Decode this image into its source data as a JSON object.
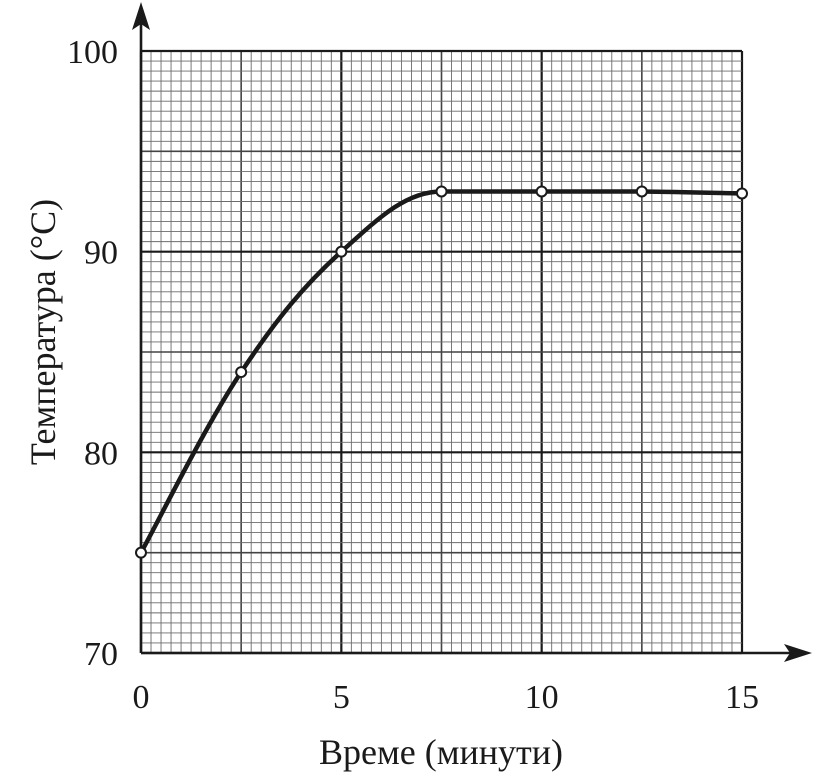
{
  "chart_data": {
    "type": "line",
    "xlabel": "Време (минути)",
    "ylabel": "Температура (°C)",
    "xlim": [
      0,
      15
    ],
    "ylim": [
      70,
      100
    ],
    "x_ticks": [
      "0",
      "5",
      "10",
      "15"
    ],
    "y_ticks": [
      "70",
      "80",
      "90",
      "100"
    ],
    "grid": true,
    "legend": "none",
    "series": [
      {
        "x": [
          0,
          2.5,
          5,
          7.5,
          10,
          12.5,
          15
        ],
        "y": [
          75,
          84,
          90,
          93,
          93,
          93,
          92.9
        ]
      }
    ],
    "colors": {
      "line": "#1a1a1a",
      "grid": "#444444",
      "background": "#ffffff"
    }
  }
}
